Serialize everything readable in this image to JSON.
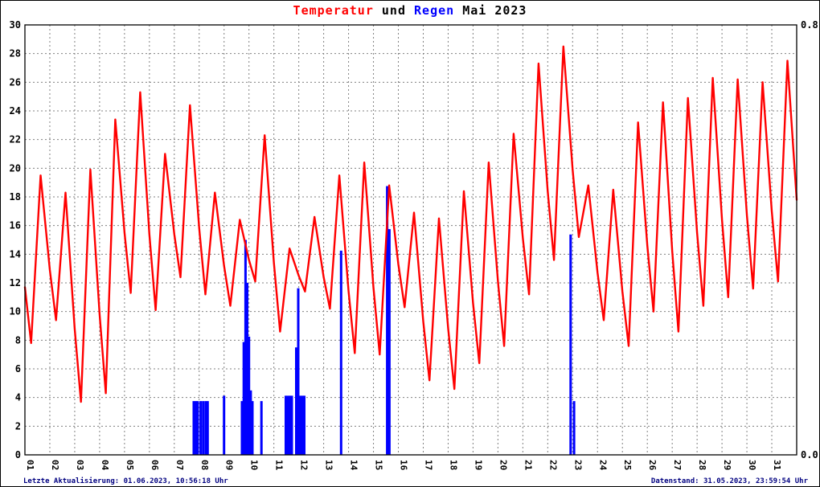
{
  "title": {
    "part1": "Temperatur",
    "part2": " und ",
    "part3": "Regen",
    "part4": " Mai 2023"
  },
  "footer": {
    "left": "Letzte Aktualisierung: 01.06.2023, 10:56:18 Uhr",
    "right": "Datenstand: 31.05.2023, 23:59:54 Uhr"
  },
  "colors": {
    "temperature": "#ff0000",
    "rain": "#0000ff",
    "grid": "#808080",
    "footer_text": "#000080",
    "background": "#ffffff"
  },
  "chart_data": {
    "type": "line",
    "title": "Temperatur und Regen Mai 2023",
    "grid": true,
    "left_axis": {
      "name": "Temperatur",
      "min": 0,
      "max": 30,
      "step": 2
    },
    "right_axis": {
      "name": "Regen",
      "min": 0.0,
      "max": 0.8,
      "top_label": "0.8",
      "bottom_label": "0.0"
    },
    "x_labels": [
      "01",
      "02",
      "03",
      "04",
      "05",
      "06",
      "07",
      "08",
      "09",
      "10",
      "11",
      "12",
      "13",
      "14",
      "15",
      "16",
      "17",
      "18",
      "19",
      "20",
      "21",
      "22",
      "23",
      "24",
      "25",
      "26",
      "27",
      "28",
      "29",
      "30",
      "31"
    ],
    "series": [
      {
        "name": "Temperatur",
        "type": "line",
        "color": "#ff0000",
        "axis": "left",
        "points": [
          [
            0,
            11.7
          ],
          [
            0.25,
            7.8
          ],
          [
            0.63,
            19.5
          ],
          [
            1.0,
            12.9
          ],
          [
            1.25,
            9.4
          ],
          [
            1.63,
            18.3
          ],
          [
            2.0,
            8.8
          ],
          [
            2.25,
            3.7
          ],
          [
            2.63,
            19.9
          ],
          [
            3.0,
            9.8
          ],
          [
            3.25,
            4.3
          ],
          [
            3.63,
            23.4
          ],
          [
            4.0,
            15.5
          ],
          [
            4.25,
            11.3
          ],
          [
            4.63,
            25.3
          ],
          [
            5.0,
            15.4
          ],
          [
            5.25,
            10.1
          ],
          [
            5.63,
            21.0
          ],
          [
            6.0,
            15.4
          ],
          [
            6.25,
            12.4
          ],
          [
            6.63,
            24.4
          ],
          [
            7.0,
            15.8
          ],
          [
            7.25,
            11.2
          ],
          [
            7.63,
            18.3
          ],
          [
            8.0,
            13.2
          ],
          [
            8.25,
            10.4
          ],
          [
            8.63,
            16.4
          ],
          [
            9.0,
            13.6
          ],
          [
            9.25,
            12.1
          ],
          [
            9.63,
            22.3
          ],
          [
            10.0,
            13.4
          ],
          [
            10.25,
            8.6
          ],
          [
            10.63,
            14.4
          ],
          [
            11.0,
            12.5
          ],
          [
            11.25,
            11.4
          ],
          [
            11.63,
            16.6
          ],
          [
            12.0,
            12.4
          ],
          [
            12.25,
            10.2
          ],
          [
            12.63,
            19.5
          ],
          [
            13.0,
            11.4
          ],
          [
            13.25,
            7.1
          ],
          [
            13.63,
            20.4
          ],
          [
            14.0,
            11.7
          ],
          [
            14.25,
            7.0
          ],
          [
            14.63,
            18.8
          ],
          [
            15.0,
            13.3
          ],
          [
            15.25,
            10.3
          ],
          [
            15.63,
            16.9
          ],
          [
            16.0,
            9.3
          ],
          [
            16.25,
            5.2
          ],
          [
            16.63,
            16.5
          ],
          [
            17.0,
            8.8
          ],
          [
            17.25,
            4.6
          ],
          [
            17.63,
            18.4
          ],
          [
            18.0,
            10.6
          ],
          [
            18.25,
            6.4
          ],
          [
            18.63,
            20.4
          ],
          [
            19.0,
            12.1
          ],
          [
            19.25,
            7.6
          ],
          [
            19.63,
            22.4
          ],
          [
            20.0,
            15.1
          ],
          [
            20.25,
            11.2
          ],
          [
            20.63,
            27.3
          ],
          [
            21.0,
            18.4
          ],
          [
            21.25,
            13.6
          ],
          [
            21.63,
            28.5
          ],
          [
            22.0,
            19.9
          ],
          [
            22.25,
            15.2
          ],
          [
            22.63,
            18.8
          ],
          [
            23.0,
            12.7
          ],
          [
            23.25,
            9.4
          ],
          [
            23.63,
            18.5
          ],
          [
            24.0,
            11.4
          ],
          [
            24.25,
            7.6
          ],
          [
            24.63,
            23.2
          ],
          [
            25.0,
            14.6
          ],
          [
            25.25,
            10.0
          ],
          [
            25.63,
            24.6
          ],
          [
            26.0,
            14.2
          ],
          [
            26.25,
            8.6
          ],
          [
            26.63,
            24.9
          ],
          [
            27.0,
            15.5
          ],
          [
            27.25,
            10.4
          ],
          [
            27.63,
            26.3
          ],
          [
            28.0,
            16.4
          ],
          [
            28.25,
            11.0
          ],
          [
            28.63,
            26.2
          ],
          [
            29.0,
            16.7
          ],
          [
            29.25,
            11.6
          ],
          [
            29.63,
            26.0
          ],
          [
            30.0,
            17.0
          ],
          [
            30.25,
            12.1
          ],
          [
            30.63,
            27.5
          ],
          [
            31.0,
            17.8
          ]
        ]
      },
      {
        "name": "Regen",
        "type": "bar",
        "color": "#0000ff",
        "axis": "right",
        "points": [
          [
            6.78,
            0.1
          ],
          [
            6.86,
            0.1
          ],
          [
            6.94,
            0.1
          ],
          [
            7.06,
            0.1
          ],
          [
            7.16,
            0.1
          ],
          [
            7.26,
            0.1
          ],
          [
            7.34,
            0.1
          ],
          [
            8.0,
            0.11
          ],
          [
            8.72,
            0.1
          ],
          [
            8.79,
            0.21
          ],
          [
            8.86,
            0.4
          ],
          [
            8.93,
            0.32
          ],
          [
            9.0,
            0.22
          ],
          [
            9.07,
            0.12
          ],
          [
            9.14,
            0.1
          ],
          [
            9.5,
            0.1
          ],
          [
            10.48,
            0.11
          ],
          [
            10.56,
            0.11
          ],
          [
            10.64,
            0.11
          ],
          [
            10.72,
            0.11
          ],
          [
            10.9,
            0.2
          ],
          [
            10.98,
            0.31
          ],
          [
            11.06,
            0.11
          ],
          [
            11.14,
            0.11
          ],
          [
            11.22,
            0.11
          ],
          [
            12.7,
            0.38
          ],
          [
            14.55,
            0.5
          ],
          [
            14.64,
            0.42
          ],
          [
            21.92,
            0.41
          ],
          [
            22.06,
            0.1
          ]
        ]
      }
    ]
  }
}
